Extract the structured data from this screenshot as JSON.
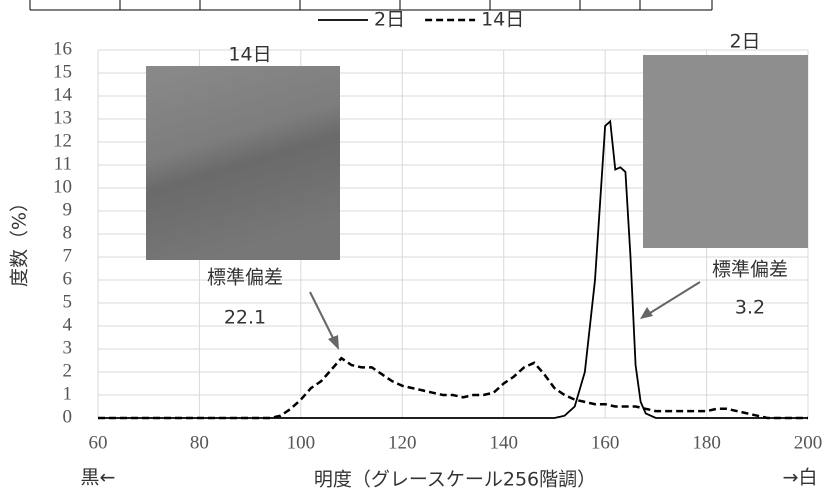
{
  "chart_data": {
    "type": "line",
    "y_label": "度数（%）",
    "x_label": "明度（グレースケール256階調）",
    "x_left_note": "黒←",
    "x_right_note": "→白",
    "annotations": {
      "left_image_title": "14日",
      "right_image_title": "2日",
      "left_label": "標準偏差",
      "left_value": "22.1",
      "right_label": "標準偏差",
      "right_value": "3.2"
    },
    "series": [
      {
        "name": "2日",
        "color": "#000000",
        "dash": "solid",
        "x": [
          60,
          150,
          152,
          154,
          156,
          158,
          160,
          161,
          162,
          163,
          164,
          165,
          166,
          167,
          168,
          170,
          200
        ],
        "values": [
          0,
          0,
          0.1,
          0.5,
          2,
          6,
          12.7,
          12.9,
          10.8,
          10.9,
          10.7,
          7,
          2.3,
          0.7,
          0.2,
          0,
          0
        ]
      },
      {
        "name": "14日",
        "color": "#000000",
        "dash": "dashed",
        "x": [
          60,
          94,
          96,
          98,
          100,
          102,
          104,
          106,
          108,
          110,
          112,
          114,
          116,
          118,
          120,
          122,
          124,
          126,
          128,
          130,
          132,
          134,
          136,
          138,
          140,
          142,
          144,
          146,
          148,
          150,
          152,
          154,
          156,
          158,
          160,
          162,
          164,
          166,
          168,
          170,
          172,
          174,
          176,
          178,
          180,
          182,
          184,
          186,
          188,
          190,
          192,
          200
        ],
        "values": [
          0,
          0,
          0.1,
          0.4,
          0.8,
          1.3,
          1.6,
          2.1,
          2.6,
          2.3,
          2.2,
          2.2,
          1.9,
          1.6,
          1.4,
          1.3,
          1.2,
          1.1,
          1.0,
          1.0,
          0.9,
          1.0,
          1.0,
          1.1,
          1.5,
          1.8,
          2.2,
          2.4,
          1.9,
          1.3,
          1.0,
          0.8,
          0.7,
          0.6,
          0.6,
          0.5,
          0.5,
          0.5,
          0.4,
          0.3,
          0.3,
          0.3,
          0.3,
          0.3,
          0.3,
          0.4,
          0.4,
          0.3,
          0.2,
          0.1,
          0,
          0
        ]
      }
    ],
    "xlim": [
      60,
      200
    ],
    "xticks": [
      60,
      80,
      100,
      120,
      140,
      160,
      180,
      200
    ],
    "ylim": [
      0,
      16
    ],
    "yticks": [
      0,
      1,
      2,
      3,
      4,
      5,
      6,
      7,
      8,
      9,
      10,
      11,
      12,
      13,
      14,
      15,
      16
    ],
    "grid": true,
    "legend": "top"
  }
}
